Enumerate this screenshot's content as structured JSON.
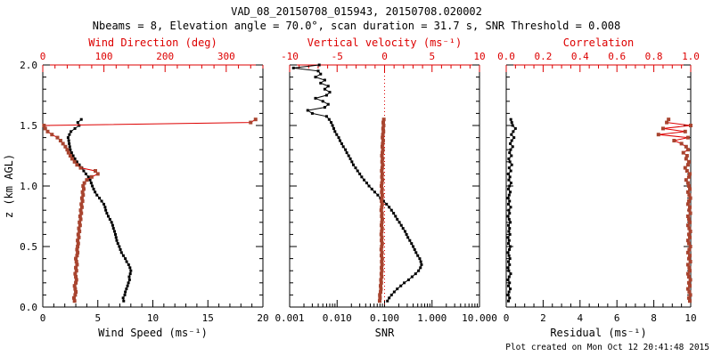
{
  "header": {
    "title": "VAD_08_20150708_015943, 20150708.020002",
    "subtitle": "Nbeams = 8, Elevation angle = 70.0°, scan duration = 31.7 s, SNR Threshold = 0.008"
  },
  "footer": {
    "created": "Plot created on Mon Oct 12 20:41:48 2015"
  },
  "colors": {
    "axis_red": "#dd0000",
    "marker_red": "#a8442f",
    "black": "#000000",
    "background": "#ffffff"
  },
  "chart_data": {
    "type": "line",
    "orientation": "vertical-profile",
    "y_axis": {
      "label": "z (km AGL)",
      "min": 0,
      "max": 2,
      "minor_step": 0.1,
      "ticks": [
        {
          "v": 0.0,
          "label": "0.0"
        },
        {
          "v": 0.5,
          "label": "0.5"
        },
        {
          "v": 1.0,
          "label": "1.0"
        },
        {
          "v": 1.5,
          "label": "1.5"
        },
        {
          "v": 2.0,
          "label": "2.0"
        }
      ]
    },
    "panels": [
      {
        "id": "wind",
        "bottom_axis": {
          "label": "Wind Speed (ms⁻¹)",
          "color": "black",
          "scale": "linear",
          "min": 0,
          "max": 20,
          "minor_step": 1,
          "ticks": [
            {
              "v": 0,
              "label": "0"
            },
            {
              "v": 5,
              "label": "5"
            },
            {
              "v": 10,
              "label": "10"
            },
            {
              "v": 15,
              "label": "15"
            },
            {
              "v": 20,
              "label": "20"
            }
          ]
        },
        "top_axis": {
          "label": "Wind Direction (deg)",
          "color": "red",
          "scale": "linear",
          "min": 0,
          "max": 360,
          "minor_step": 20,
          "zero_line": false,
          "ticks": [
            {
              "v": 0,
              "label": "0"
            },
            {
              "v": 100,
              "label": "100"
            },
            {
              "v": 200,
              "label": "200"
            },
            {
              "v": 300,
              "label": "300"
            }
          ]
        },
        "series": [
          {
            "name": "wind-speed",
            "axis": "bottom",
            "color": "black",
            "z0": 0.05,
            "dz": 0.025,
            "values": [
              7.35,
              7.3,
              7.45,
              7.5,
              7.6,
              7.7,
              7.78,
              7.88,
              7.85,
              7.95,
              8.0,
              7.92,
              7.8,
              7.62,
              7.5,
              7.32,
              7.15,
              7.05,
              6.95,
              6.82,
              6.72,
              6.66,
              6.6,
              6.52,
              6.42,
              6.35,
              6.25,
              6.1,
              5.95,
              5.82,
              5.72,
              5.66,
              5.55,
              5.35,
              5.15,
              4.92,
              4.75,
              4.62,
              4.5,
              4.4,
              4.3,
              4.15,
              3.92,
              3.72,
              3.55,
              3.32,
              3.1,
              2.92,
              2.76,
              2.62,
              2.5,
              2.45,
              2.4,
              2.36,
              2.3,
              2.42,
              2.56,
              2.92,
              3.3,
              3.18,
              3.5
            ]
          },
          {
            "name": "wind-direction",
            "axis": "top",
            "color": "red",
            "z0": 0.05,
            "dz": 0.025,
            "values": [
              52,
              51,
              53,
              54,
              53,
              52,
              54,
              55,
              54,
              53,
              55,
              54,
              56,
              55,
              54,
              56,
              57,
              56,
              57,
              58,
              57,
              59,
              58,
              60,
              59,
              61,
              60,
              62,
              61,
              63,
              62,
              64,
              63,
              65,
              64,
              66,
              65,
              67,
              66,
              68,
              72,
              80,
              90,
              86,
              62,
              56,
              52,
              48,
              45,
              42,
              40,
              37,
              33,
              29,
              24,
              15,
              8,
              4,
              2,
              340,
              348
            ]
          }
        ]
      },
      {
        "id": "snr",
        "bottom_axis": {
          "label": "SNR",
          "color": "black",
          "scale": "log",
          "min": 0.001,
          "max": 10,
          "ticks": [
            {
              "v": 0.001,
              "label": "0.001"
            },
            {
              "v": 0.01,
              "label": "0.010"
            },
            {
              "v": 0.1,
              "label": "0.100"
            },
            {
              "v": 1,
              "label": "1.000"
            },
            {
              "v": 10,
              "label": "10.000"
            }
          ]
        },
        "top_axis": {
          "label": "Vertical velocity (ms⁻¹)",
          "color": "red",
          "scale": "linear",
          "min": -10,
          "max": 10,
          "minor_step": 1,
          "zero_line": true,
          "ticks": [
            {
              "v": -10,
              "label": "-10"
            },
            {
              "v": -5,
              "label": "-5"
            },
            {
              "v": 0,
              "label": "0"
            },
            {
              "v": 5,
              "label": "5"
            },
            {
              "v": 10,
              "label": "10"
            }
          ]
        },
        "series": [
          {
            "name": "snr",
            "axis": "bottom",
            "color": "black",
            "z0": 0.05,
            "dz": 0.025,
            "values": [
              0.115,
              0.125,
              0.14,
              0.16,
              0.185,
              0.22,
              0.26,
              0.32,
              0.38,
              0.45,
              0.52,
              0.57,
              0.6,
              0.58,
              0.55,
              0.5,
              0.46,
              0.43,
              0.4,
              0.37,
              0.34,
              0.31,
              0.29,
              0.27,
              0.245,
              0.225,
              0.205,
              0.185,
              0.17,
              0.155,
              0.14,
              0.125,
              0.11,
              0.095,
              0.082,
              0.072,
              0.062,
              0.054,
              0.047,
              0.042,
              0.037,
              0.033,
              0.03,
              0.027,
              0.0245,
              0.022,
              0.0205,
              0.019,
              0.0175,
              0.016,
              0.015,
              0.0135,
              0.0125,
              0.0115,
              0.0108,
              0.0098,
              0.009,
              0.0085,
              0.008,
              0.0075,
              0.0068,
              0.006,
              0.003,
              0.0024,
              0.0055,
              0.0065,
              0.005,
              0.0035,
              0.006,
              0.007,
              0.0055,
              0.0065,
              0.0045,
              0.0055,
              0.0035,
              0.0045,
              0.004,
              0.0012,
              0.0042
            ]
          },
          {
            "name": "vertical-velocity",
            "axis": "top",
            "color": "red",
            "z0": 0.05,
            "dz": 0.025,
            "values": [
              -0.52,
              -0.48,
              -0.5,
              -0.42,
              -0.38,
              -0.42,
              -0.35,
              -0.38,
              -0.3,
              -0.34,
              -0.28,
              -0.32,
              -0.26,
              -0.3,
              -0.25,
              -0.33,
              -0.27,
              -0.35,
              -0.3,
              -0.25,
              -0.32,
              -0.28,
              -0.35,
              -0.3,
              -0.26,
              -0.33,
              -0.28,
              -0.24,
              -0.3,
              -0.27,
              -0.35,
              -0.3,
              -0.25,
              -0.32,
              -0.28,
              -0.24,
              -0.3,
              -0.26,
              -0.33,
              -0.28,
              -0.22,
              -0.28,
              -0.24,
              -0.3,
              -0.25,
              -0.2,
              -0.26,
              -0.22,
              -0.28,
              -0.23,
              -0.18,
              -0.24,
              -0.2,
              -0.15,
              -0.22,
              -0.18,
              -0.12,
              -0.16,
              -0.1,
              -0.14,
              -0.08
            ]
          }
        ]
      },
      {
        "id": "residual",
        "bottom_axis": {
          "label": "Residual (ms⁻¹)",
          "color": "black",
          "scale": "linear",
          "min": 0,
          "max": 10,
          "minor_step": 0.5,
          "ticks": [
            {
              "v": 0,
              "label": "0"
            },
            {
              "v": 2,
              "label": "2"
            },
            {
              "v": 4,
              "label": "4"
            },
            {
              "v": 6,
              "label": "6"
            },
            {
              "v": 8,
              "label": "8"
            },
            {
              "v": 10,
              "label": "10"
            }
          ]
        },
        "top_axis": {
          "label": "Correlation",
          "color": "red",
          "scale": "linear",
          "min": 0,
          "max": 1,
          "minor_step": 0.05,
          "zero_line": false,
          "ticks": [
            {
              "v": 0.0,
              "label": "0.0"
            },
            {
              "v": 0.2,
              "label": "0.2"
            },
            {
              "v": 0.4,
              "label": "0.4"
            },
            {
              "v": 0.6,
              "label": "0.6"
            },
            {
              "v": 0.8,
              "label": "0.8"
            },
            {
              "v": 1.0,
              "label": "1.0"
            }
          ]
        },
        "series": [
          {
            "name": "residual",
            "axis": "bottom",
            "color": "black",
            "z0": 0.05,
            "dz": 0.025,
            "values": [
              0.12,
              0.18,
              0.1,
              0.15,
              0.22,
              0.12,
              0.18,
              0.1,
              0.16,
              0.24,
              0.14,
              0.1,
              0.18,
              0.12,
              0.2,
              0.15,
              0.1,
              0.17,
              0.22,
              0.12,
              0.16,
              0.1,
              0.2,
              0.14,
              0.18,
              0.12,
              0.22,
              0.16,
              0.1,
              0.18,
              0.14,
              0.24,
              0.12,
              0.18,
              0.1,
              0.16,
              0.22,
              0.12,
              0.18,
              0.26,
              0.14,
              0.2,
              0.12,
              0.25,
              0.16,
              0.3,
              0.2,
              0.14,
              0.28,
              0.18,
              0.24,
              0.35,
              0.22,
              0.3,
              0.42,
              0.28,
              0.38,
              0.5,
              0.35,
              0.3,
              0.25
            ]
          },
          {
            "name": "correlation",
            "axis": "top",
            "color": "red",
            "z0": 0.05,
            "dz": 0.025,
            "values": [
              0.995,
              0.99,
              0.998,
              0.992,
              0.985,
              0.995,
              0.99,
              0.998,
              0.99,
              0.985,
              0.995,
              0.992,
              0.985,
              0.998,
              0.99,
              0.995,
              0.985,
              0.992,
              0.998,
              0.99,
              0.985,
              0.995,
              0.99,
              0.998,
              0.992,
              0.985,
              0.995,
              0.99,
              0.985,
              0.998,
              0.992,
              0.995,
              0.985,
              0.99,
              0.998,
              0.992,
              0.985,
              0.995,
              0.99,
              0.985,
              0.975,
              0.99,
              0.995,
              0.98,
              0.97,
              0.985,
              0.99,
              0.975,
              0.98,
              0.96,
              0.985,
              0.975,
              0.95,
              0.91,
              0.985,
              0.825,
              0.97,
              0.85,
              1.0,
              0.87,
              0.88
            ]
          }
        ]
      }
    ]
  }
}
